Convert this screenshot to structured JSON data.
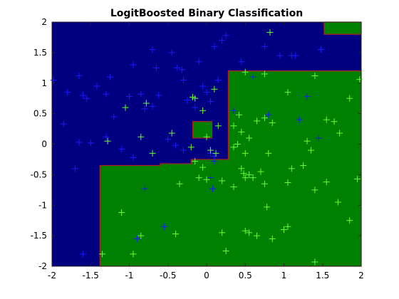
{
  "chart_data": {
    "type": "scatter",
    "title": "LogitBoosted Binary Classification",
    "xlabel": "",
    "ylabel": "",
    "xlim": [
      -2,
      2
    ],
    "ylim": [
      -2,
      2
    ],
    "x_ticks": [
      "-2",
      "-1.5",
      "-1",
      "-0.5",
      "0",
      "0.5",
      "1",
      "1.5",
      "2"
    ],
    "y_ticks": [
      "2",
      "1.5",
      "1",
      "0.5",
      "0",
      "-0.5",
      "-1",
      "-1.5",
      "-2"
    ],
    "grid": false,
    "legend": "none",
    "colors": {
      "class_a_region": "#000080",
      "class_b_region": "#008000",
      "boundary": "#b22222",
      "class_a_marker": "#1a1aff",
      "class_b_marker": "#66ff33"
    },
    "regions": [
      {
        "class": "class_a",
        "polygon": [
          [
            -2,
            2
          ],
          [
            2,
            2
          ],
          [
            2,
            -2
          ],
          [
            -2,
            -2
          ]
        ]
      },
      {
        "class": "class_b",
        "polygon": [
          [
            -1.38,
            -2
          ],
          [
            2,
            -2
          ],
          [
            2,
            1.2
          ],
          [
            0.28,
            1.2
          ],
          [
            0.28,
            -0.25
          ],
          [
            -0.2,
            -0.25
          ],
          [
            -0.2,
            -0.32
          ],
          [
            -0.6,
            -0.32
          ],
          [
            -0.6,
            -0.35
          ],
          [
            -1.38,
            -0.35
          ]
        ]
      },
      {
        "class": "class_b",
        "polygon": [
          [
            -0.18,
            0.1
          ],
          [
            0.07,
            0.1
          ],
          [
            0.07,
            0.37
          ],
          [
            -0.18,
            0.37
          ]
        ]
      },
      {
        "class": "class_b",
        "polygon": [
          [
            1.52,
            1.8
          ],
          [
            2,
            1.8
          ],
          [
            2,
            2
          ],
          [
            1.52,
            2
          ]
        ]
      }
    ],
    "series": [
      {
        "marker": "+",
        "color": "#1a1aff",
        "points": [
          [
            -1.98,
            1.05
          ],
          [
            -1.8,
            0.85
          ],
          [
            -1.85,
            0.33
          ],
          [
            -1.65,
            1.12
          ],
          [
            -1.6,
            0.8
          ],
          [
            -1.55,
            0.75
          ],
          [
            -1.42,
            0.95
          ],
          [
            -1.3,
            0.82
          ],
          [
            -1.25,
            1.1
          ],
          [
            -1.2,
            0.45
          ],
          [
            -1.0,
            0.78
          ],
          [
            -0.95,
            1.3
          ],
          [
            -0.85,
            0.82
          ],
          [
            -0.8,
            0.58
          ],
          [
            -0.7,
            0.62
          ],
          [
            -0.65,
            1.25
          ],
          [
            -0.62,
            0.8
          ],
          [
            -0.45,
            1.5
          ],
          [
            -0.38,
            1.25
          ],
          [
            -0.32,
            1.22
          ],
          [
            -0.3,
            1.05
          ],
          [
            -0.25,
            0.72
          ],
          [
            -0.15,
            0.6
          ],
          [
            -0.1,
            1.35
          ],
          [
            -0.05,
            0.95
          ],
          [
            0.05,
            0.7
          ],
          [
            0.1,
            1.6
          ],
          [
            0.15,
            1.05
          ],
          [
            0.2,
            1.7
          ],
          [
            0.25,
            1.78
          ],
          [
            0.45,
            1.35
          ],
          [
            0.6,
            1.1
          ],
          [
            0.75,
            1.6
          ],
          [
            0.95,
            1.45
          ],
          [
            1.1,
            1.45
          ],
          [
            1.3,
            0.78
          ],
          [
            1.48,
            1.55
          ],
          [
            -1.6,
            -1.8
          ],
          [
            -1.7,
            -0.4
          ],
          [
            -1.65,
            0.03
          ],
          [
            -0.4,
            -0.02
          ],
          [
            -0.5,
            0.08
          ],
          [
            -1.1,
            -0.08
          ],
          [
            -0.95,
            -0.22
          ],
          [
            -0.9,
            -1.55
          ],
          [
            -0.8,
            -0.73
          ],
          [
            -0.55,
            -1.35
          ],
          [
            0.05,
            -0.15
          ],
          [
            0.1,
            -0.2
          ],
          [
            0.1,
            -0.28
          ],
          [
            0.08,
            -0.73
          ],
          [
            0.05,
            -0.55
          ],
          [
            0.8,
            0.48
          ],
          [
            1.2,
            0.4
          ],
          [
            1.45,
            0.1
          ],
          [
            -1.5,
            0.02
          ],
          [
            -1.3,
            0.12
          ],
          [
            -0.3,
            -0.1
          ],
          [
            0.0,
            0.85
          ],
          [
            -0.7,
            1.55
          ],
          [
            0.35,
            0.55
          ],
          [
            1.15,
            1.45
          ]
        ]
      },
      {
        "marker": "+",
        "color": "#66ff33",
        "points": [
          [
            0.82,
            1.83
          ],
          [
            0.5,
            1.18
          ],
          [
            0.75,
            1.15
          ],
          [
            1.4,
            1.12
          ],
          [
            1.98,
            1.06
          ],
          [
            1.05,
            0.85
          ],
          [
            1.85,
            0.75
          ],
          [
            -1.05,
            0.6
          ],
          [
            -0.78,
            0.67
          ],
          [
            -0.18,
            0.77
          ],
          [
            0.1,
            0.9
          ],
          [
            0.42,
            0.48
          ],
          [
            0.65,
            0.38
          ],
          [
            0.75,
            0.43
          ],
          [
            0.85,
            0.35
          ],
          [
            1.55,
            0.4
          ],
          [
            1.65,
            0.37
          ],
          [
            1.72,
            0.18
          ],
          [
            0.35,
            0.3
          ],
          [
            0.45,
            0.2
          ],
          [
            0.55,
            0.1
          ],
          [
            0.4,
            0.0
          ],
          [
            0.5,
            -0.15
          ],
          [
            0.8,
            -0.15
          ],
          [
            1.3,
            0.05
          ],
          [
            1.35,
            -0.1
          ],
          [
            -1.28,
            0.05
          ],
          [
            -0.85,
            0.12
          ],
          [
            -0.7,
            -0.15
          ],
          [
            -0.45,
            0.18
          ],
          [
            -0.15,
            0.75
          ],
          [
            -0.05,
            0.55
          ],
          [
            -0.05,
            -0.38
          ],
          [
            -0.15,
            -0.28
          ],
          [
            0.05,
            -0.1
          ],
          [
            -0.1,
            -0.55
          ],
          [
            0.0,
            -0.58
          ],
          [
            -0.35,
            -0.65
          ],
          [
            0.2,
            -0.6
          ],
          [
            0.35,
            -0.7
          ],
          [
            0.45,
            -0.4
          ],
          [
            0.55,
            -0.5
          ],
          [
            0.7,
            -0.45
          ],
          [
            0.5,
            -0.55
          ],
          [
            0.75,
            -0.65
          ],
          [
            1.1,
            -0.4
          ],
          [
            1.25,
            -0.35
          ],
          [
            1.05,
            -0.63
          ],
          [
            1.4,
            -0.75
          ],
          [
            1.55,
            -0.62
          ],
          [
            1.95,
            -0.57
          ],
          [
            1.7,
            -0.95
          ],
          [
            0.78,
            -1.03
          ],
          [
            0.5,
            -1.42
          ],
          [
            0.2,
            -1.45
          ],
          [
            0.55,
            -1.45
          ],
          [
            0.65,
            -1.5
          ],
          [
            0.85,
            -1.55
          ],
          [
            1.0,
            -1.4
          ],
          [
            1.05,
            -1.35
          ],
          [
            1.85,
            -1.25
          ],
          [
            1.4,
            -1.93
          ],
          [
            0.25,
            -1.75
          ],
          [
            -1.1,
            -1.12
          ],
          [
            -0.85,
            -1.5
          ],
          [
            -0.95,
            -1.8
          ],
          [
            -1.35,
            -1.8
          ],
          [
            -0.2,
            -0.05
          ],
          [
            0.15,
            0.3
          ],
          [
            0.0,
            0.12
          ],
          [
            0.35,
            -0.05
          ],
          [
            0.6,
            -0.55
          ],
          [
            -0.4,
            -1.47
          ],
          [
            0.12,
            -0.15
          ],
          [
            0.48,
            -0.48
          ]
        ]
      }
    ]
  }
}
